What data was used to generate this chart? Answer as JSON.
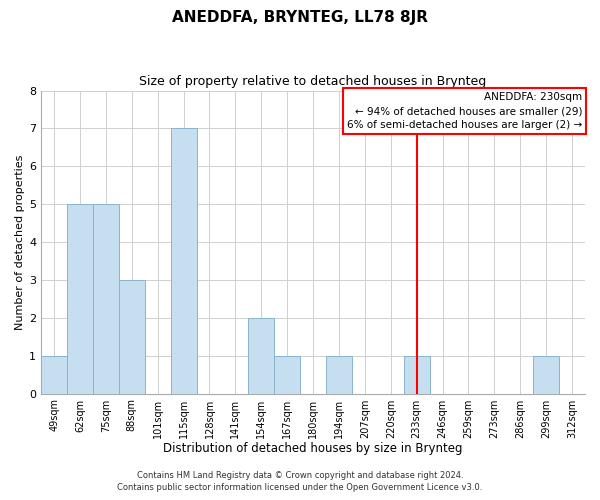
{
  "title": "ANEDDFA, BRYNTEG, LL78 8JR",
  "subtitle": "Size of property relative to detached houses in Brynteg",
  "xlabel": "Distribution of detached houses by size in Brynteg",
  "ylabel": "Number of detached properties",
  "footer_lines": [
    "Contains HM Land Registry data © Crown copyright and database right 2024.",
    "Contains public sector information licensed under the Open Government Licence v3.0."
  ],
  "bin_labels": [
    "49sqm",
    "62sqm",
    "75sqm",
    "88sqm",
    "101sqm",
    "115sqm",
    "128sqm",
    "141sqm",
    "154sqm",
    "167sqm",
    "180sqm",
    "194sqm",
    "207sqm",
    "220sqm",
    "233sqm",
    "246sqm",
    "259sqm",
    "273sqm",
    "286sqm",
    "299sqm",
    "312sqm"
  ],
  "bar_heights": [
    1,
    5,
    5,
    3,
    0,
    7,
    0,
    0,
    2,
    1,
    0,
    1,
    0,
    0,
    1,
    0,
    0,
    0,
    0,
    1,
    0
  ],
  "bar_color": "#c5dff0",
  "bar_edge_color": "#8ab4cc",
  "grid_color": "#d0d0d0",
  "vline_x_index": 14,
  "vline_color": "red",
  "annotation_text": "ANEDDFA: 230sqm\n← 94% of detached houses are smaller (29)\n6% of semi-detached houses are larger (2) →",
  "annotation_box_edge_color": "red",
  "ylim": [
    0,
    8
  ],
  "yticks": [
    0,
    1,
    2,
    3,
    4,
    5,
    6,
    7,
    8
  ],
  "background_color": "#ffffff",
  "title_fontsize": 11,
  "subtitle_fontsize": 9
}
